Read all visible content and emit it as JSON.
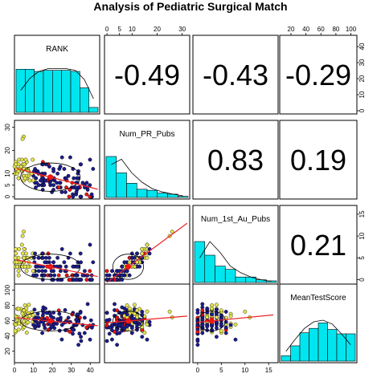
{
  "title": "Analysis of Pediatric Surgical Match",
  "colors": {
    "hist_fill": "#00e5ee",
    "point_blue": "#1c1c8c",
    "point_yellow": "#e6e64c",
    "point_red": "#ee1111",
    "fit_line": "#ee2222",
    "ellipse": "#000000"
  },
  "chart_data": {
    "type": "scatter-matrix",
    "variables": [
      "RANK",
      "Num_PR_Pubs",
      "Num_1st_Au_Pubs",
      "MeanTestScore"
    ],
    "ranges": {
      "RANK": [
        0,
        45
      ],
      "Num_PR_Pubs": [
        -1,
        33
      ],
      "Num_1st_Au_Pubs": [
        -1,
        17
      ],
      "MeanTestScore": [
        5,
        108
      ]
    },
    "ticks": {
      "RANK": [
        "0",
        "10",
        "20",
        "30",
        "40"
      ],
      "Num_PR_Pubs": [
        "0",
        "5",
        "10",
        "20",
        "30"
      ],
      "Num_1st_Au_Pubs": [
        "0",
        "5",
        "10",
        "15"
      ],
      "MeanTestScore": [
        "20",
        "40",
        "60",
        "80",
        "100"
      ]
    },
    "tick_values": {
      "RANK": [
        0,
        10,
        20,
        30,
        40
      ],
      "Num_PR_Pubs": [
        0,
        5,
        10,
        20,
        30
      ],
      "Num_1st_Au_Pubs": [
        0,
        5,
        10,
        15
      ],
      "MeanTestScore": [
        20,
        40,
        60,
        80,
        100
      ]
    },
    "correlations": [
      {
        "row": 0,
        "col": 1,
        "value": "-0.49"
      },
      {
        "row": 0,
        "col": 2,
        "value": "-0.43"
      },
      {
        "row": 0,
        "col": 3,
        "value": "-0.29"
      },
      {
        "row": 1,
        "col": 2,
        "value": "0.83"
      },
      {
        "row": 1,
        "col": 3,
        "value": "0.19"
      },
      {
        "row": 2,
        "col": 3,
        "value": "0.21"
      }
    ],
    "histograms": {
      "RANK": {
        "bins": [
          0,
          5,
          10,
          15,
          20,
          25,
          30,
          35,
          40,
          45
        ],
        "counts": [
          0.79,
          0.79,
          0.75,
          0.77,
          0.77,
          0.77,
          0.75,
          0.45,
          0.09
        ],
        "density": [
          0.4,
          0.62,
          0.75,
          0.8,
          0.8,
          0.8,
          0.77,
          0.6,
          0.25
        ]
      },
      "Num_PR_Pubs": {
        "bins": [
          0,
          4,
          8,
          12,
          16,
          20,
          24,
          28,
          32
        ],
        "counts": [
          0.75,
          0.45,
          0.26,
          0.15,
          0.13,
          0.08,
          0.06,
          0.02
        ],
        "density": [
          0.6,
          0.7,
          0.45,
          0.28,
          0.16,
          0.1,
          0.06,
          0.03
        ]
      },
      "Num_1st_Au_Pubs": {
        "bins": [
          0,
          2,
          4,
          6,
          8,
          10,
          12,
          14,
          16
        ],
        "counts": [
          0.75,
          0.5,
          0.3,
          0.24,
          0.1,
          0.1,
          0.05,
          0.03
        ],
        "density": [
          0.45,
          0.75,
          0.55,
          0.3,
          0.18,
          0.1,
          0.05,
          0.02
        ]
      },
      "MeanTestScore": {
        "bins": [
          20,
          30,
          40,
          50,
          60,
          70,
          80,
          90,
          100
        ],
        "counts": [
          0.1,
          0.28,
          0.52,
          0.6,
          0.7,
          0.58,
          0.5,
          0.5
        ],
        "density": [
          0.18,
          0.4,
          0.6,
          0.72,
          0.75,
          0.68,
          0.5,
          0.3
        ]
      }
    }
  }
}
